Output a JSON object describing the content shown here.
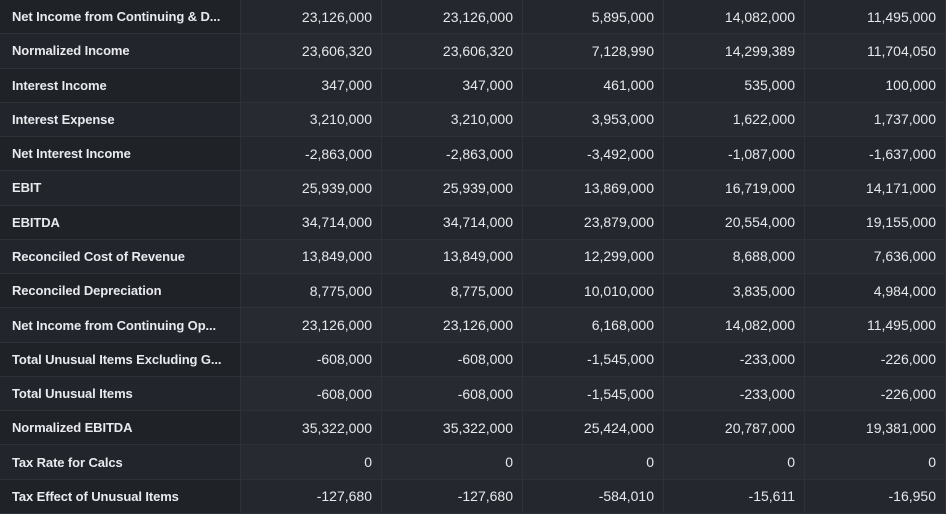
{
  "rows": [
    {
      "label": "Net Income from Continuing & D...",
      "values": [
        "23,126,000",
        "23,126,000",
        "5,895,000",
        "14,082,000",
        "11,495,000"
      ]
    },
    {
      "label": "Normalized Income",
      "values": [
        "23,606,320",
        "23,606,320",
        "7,128,990",
        "14,299,389",
        "11,704,050"
      ]
    },
    {
      "label": "Interest Income",
      "values": [
        "347,000",
        "347,000",
        "461,000",
        "535,000",
        "100,000"
      ]
    },
    {
      "label": "Interest Expense",
      "values": [
        "3,210,000",
        "3,210,000",
        "3,953,000",
        "1,622,000",
        "1,737,000"
      ]
    },
    {
      "label": "Net Interest Income",
      "values": [
        "-2,863,000",
        "-2,863,000",
        "-3,492,000",
        "-1,087,000",
        "-1,637,000"
      ]
    },
    {
      "label": "EBIT",
      "values": [
        "25,939,000",
        "25,939,000",
        "13,869,000",
        "16,719,000",
        "14,171,000"
      ]
    },
    {
      "label": "EBITDA",
      "values": [
        "34,714,000",
        "34,714,000",
        "23,879,000",
        "20,554,000",
        "19,155,000"
      ]
    },
    {
      "label": "Reconciled Cost of Revenue",
      "values": [
        "13,849,000",
        "13,849,000",
        "12,299,000",
        "8,688,000",
        "7,636,000"
      ]
    },
    {
      "label": "Reconciled Depreciation",
      "values": [
        "8,775,000",
        "8,775,000",
        "10,010,000",
        "3,835,000",
        "4,984,000"
      ]
    },
    {
      "label": "Net Income from Continuing Op...",
      "values": [
        "23,126,000",
        "23,126,000",
        "6,168,000",
        "14,082,000",
        "11,495,000"
      ]
    },
    {
      "label": "Total Unusual Items Excluding G...",
      "values": [
        "-608,000",
        "-608,000",
        "-1,545,000",
        "-233,000",
        "-226,000"
      ]
    },
    {
      "label": "Total Unusual Items",
      "values": [
        "-608,000",
        "-608,000",
        "-1,545,000",
        "-233,000",
        "-226,000"
      ]
    },
    {
      "label": "Normalized EBITDA",
      "values": [
        "35,322,000",
        "35,322,000",
        "25,424,000",
        "20,787,000",
        "19,381,000"
      ]
    },
    {
      "label": "Tax Rate for Calcs",
      "values": [
        "0",
        "0",
        "0",
        "0",
        "0"
      ]
    },
    {
      "label": "Tax Effect of Unusual Items",
      "values": [
        "-127,680",
        "-127,680",
        "-584,010",
        "-15,611",
        "-16,950"
      ]
    }
  ]
}
